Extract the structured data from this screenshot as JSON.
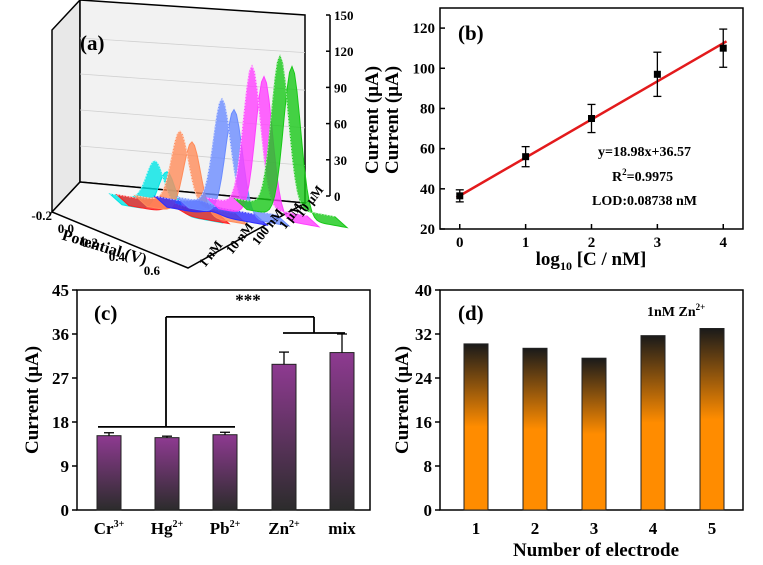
{
  "chart_data": [
    {
      "panel": "(a)",
      "type": "area",
      "xlabel": "Potential (V)",
      "zlabel": "Current (μA)",
      "x_ticks": [
        "-0.2",
        "0.0",
        "0.2",
        "0.4",
        "0.6"
      ],
      "z_ticks": [
        "0",
        "30",
        "60",
        "90",
        "120",
        "150"
      ],
      "depth_ticks": [
        "1 nM",
        "10 nM",
        "100 nM",
        "1 μM",
        "10 μM"
      ],
      "series": [
        {
          "color": "#00e5e5",
          "peak": 34
        },
        {
          "color": "#ff2020",
          "peak": 5
        },
        {
          "color": "#ff8c5a",
          "peak": 60
        },
        {
          "color": "#2c2cff",
          "peak": 3
        },
        {
          "color": "#6b8cff",
          "peak": 88
        },
        {
          "color": "#ff40ff",
          "peak": 116
        },
        {
          "color": "#18c818",
          "peak": 125
        }
      ]
    },
    {
      "panel": "(b)",
      "type": "scatter",
      "xlabel_main": "log",
      "xlabel_sub": "10",
      "xlabel_rest": " [C / nM]",
      "ylabel": "Current (μA)",
      "xlim": [
        -0.3,
        4.3
      ],
      "ylim": [
        20,
        130
      ],
      "x_ticks": [
        0,
        1,
        2,
        3,
        4
      ],
      "y_ticks": [
        20,
        40,
        60,
        80,
        100,
        120
      ],
      "x": [
        0,
        1,
        2,
        3,
        4
      ],
      "y": [
        36.5,
        56,
        75,
        97,
        110
      ],
      "err": [
        3,
        5,
        7,
        11,
        9.5
      ],
      "fit": {
        "slope": 18.98,
        "intercept": 36.57,
        "color": "#e31a1c"
      },
      "annotations": {
        "eq": "y=18.98x+36.57",
        "r2_pre": "R",
        "r2_sup": "2",
        "r2_post": "=0.9975",
        "lod": "LOD:0.08738 nM"
      }
    },
    {
      "panel": "(c)",
      "type": "bar",
      "ylabel": "Current (μA)",
      "ylim": [
        0,
        45
      ],
      "y_ticks": [
        0,
        9,
        18,
        27,
        36,
        45
      ],
      "categories": [
        {
          "base": "Cr",
          "sup": "3+"
        },
        {
          "base": "Hg",
          "sup": "2+"
        },
        {
          "base": "Pb",
          "sup": "2+"
        },
        {
          "base": "Zn",
          "sup": "2+"
        },
        {
          "base": "mix",
          "sup": ""
        }
      ],
      "values": [
        15.2,
        14.8,
        15.4,
        29.8,
        32.2
      ],
      "errors": [
        0.6,
        0.3,
        0.5,
        2.5,
        3.8
      ],
      "significance": "***",
      "colors": {
        "top": "#8e3a91",
        "bottom": "#2c2c2c"
      }
    },
    {
      "panel": "(d)",
      "type": "bar",
      "xlabel": "Number of electrode",
      "ylabel": "Current (μA)",
      "ylim": [
        0,
        40
      ],
      "y_ticks": [
        0,
        8,
        16,
        24,
        32,
        40
      ],
      "categories": [
        "1",
        "2",
        "3",
        "4",
        "5"
      ],
      "values": [
        30.2,
        29.4,
        27.6,
        31.7,
        33
      ],
      "legend_pre": "1nM Zn",
      "legend_sup": "2+",
      "colors": {
        "top": "#1a1a1a",
        "bottom": "#ff8c00"
      }
    }
  ]
}
